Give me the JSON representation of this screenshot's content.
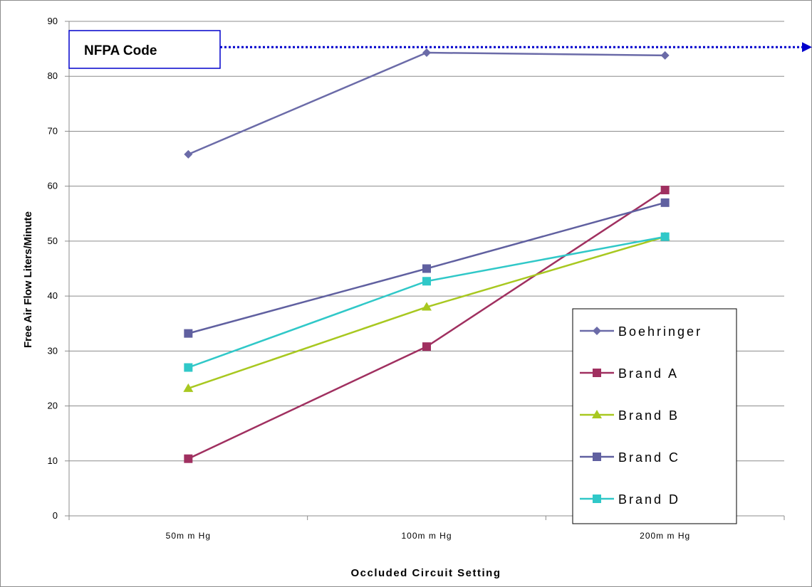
{
  "chart_data": {
    "type": "line",
    "title": "",
    "xlabel": "Occluded Circuit Setting",
    "ylabel": "Free Air Flow Liters/Minute",
    "categories": [
      "50mm Hg",
      "100mm Hg",
      "200mm Hg"
    ],
    "category_labels": [
      "50m m Hg",
      "100m m Hg",
      "200m m Hg"
    ],
    "ylim": [
      0,
      90
    ],
    "yticks": [
      0,
      10,
      20,
      30,
      40,
      50,
      60,
      70,
      80,
      90
    ],
    "grid": true,
    "legend_position": "bottom-right",
    "series": [
      {
        "name": "Boehringer",
        "values": [
          65.8,
          84.3,
          83.8
        ],
        "color": "#6b6ba8",
        "marker": "diamond"
      },
      {
        "name": "Brand A",
        "values": [
          10.4,
          30.8,
          59.3
        ],
        "color": "#a03060",
        "marker": "square"
      },
      {
        "name": "Brand B",
        "values": [
          23.2,
          38.0,
          50.8
        ],
        "color": "#a8c820",
        "marker": "triangle"
      },
      {
        "name": "Brand C",
        "values": [
          33.2,
          45.0,
          57.0
        ],
        "color": "#6060a0",
        "marker": "square"
      },
      {
        "name": "Brand D",
        "values": [
          27.0,
          42.7,
          50.8
        ],
        "color": "#30c8c8",
        "marker": "square"
      }
    ],
    "reference_line": {
      "label": "NFPA Code",
      "value": 85.3,
      "color": "#0000cc",
      "style": "dotted-arrow"
    }
  }
}
